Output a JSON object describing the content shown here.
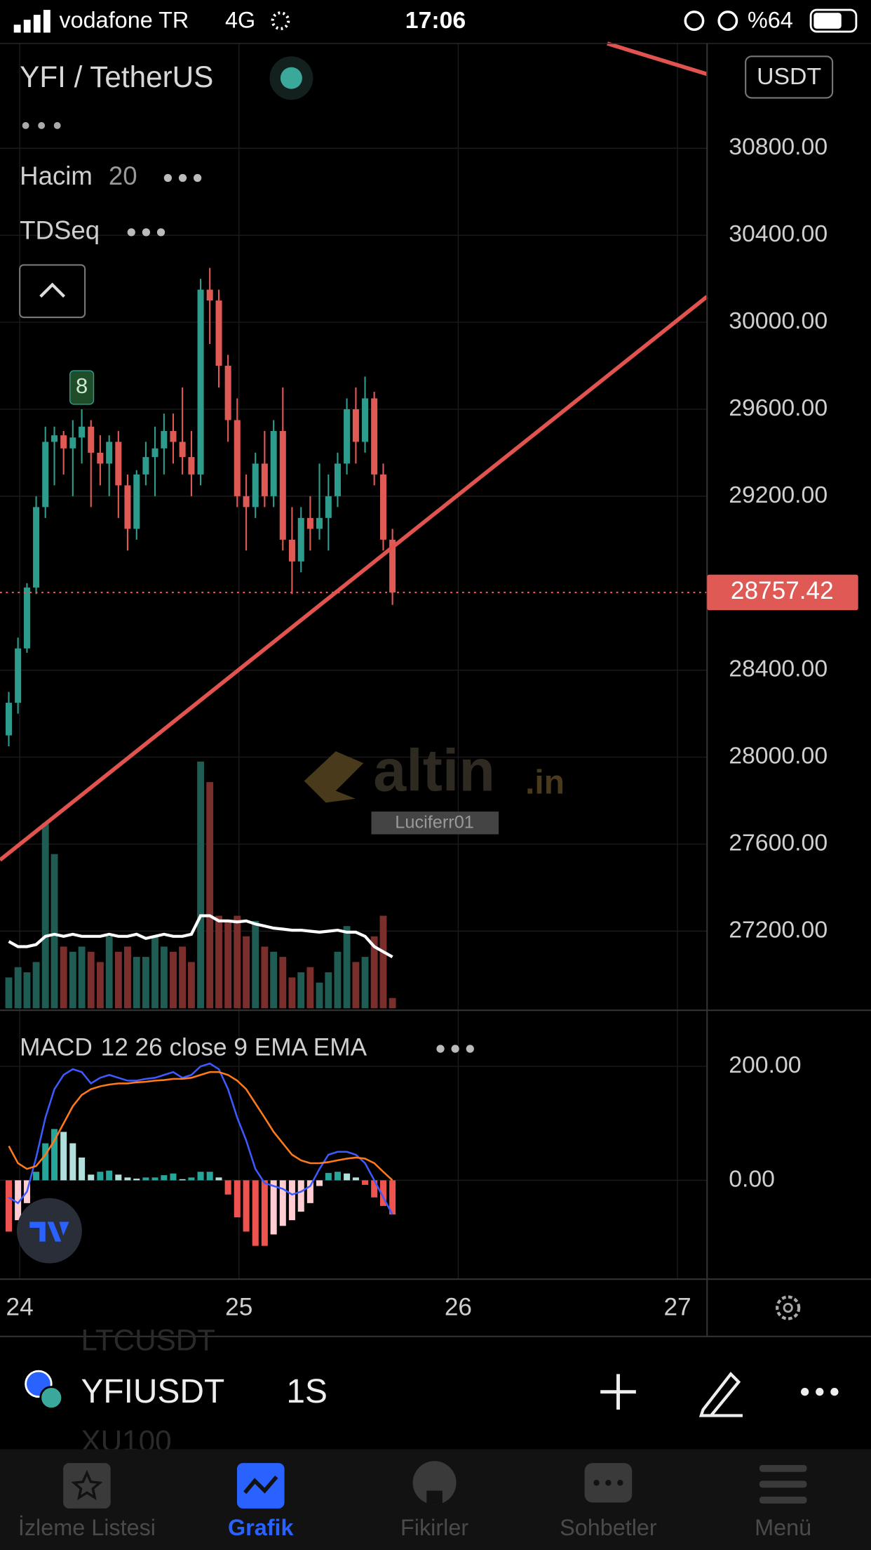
{
  "status_bar": {
    "carrier": "vodafone TR",
    "network": "4G",
    "time": "17:06",
    "battery": "%64"
  },
  "header": {
    "title": "YFI / TetherUS",
    "quote_currency": "USDT"
  },
  "chart_data": [
    {
      "type": "candlestick",
      "indicator": "TDSeq",
      "x": [
        23.95,
        23.992,
        24.033,
        24.075,
        24.117,
        24.158,
        24.2,
        24.242,
        24.283,
        24.325,
        24.367,
        24.408,
        24.45,
        24.492,
        24.533,
        24.575,
        24.617,
        24.658,
        24.7,
        24.742,
        24.783,
        24.825,
        24.867,
        24.908,
        24.95,
        24.992,
        25.033,
        25.075,
        25.117,
        25.158,
        25.2,
        25.242,
        25.283,
        25.325,
        25.367,
        25.408,
        25.45,
        25.492,
        25.533,
        25.575,
        25.617,
        25.658,
        25.7
      ],
      "open": [
        28100,
        28250,
        28500,
        28780,
        29150,
        29450,
        29480,
        29420,
        29470,
        29520,
        29400,
        29350,
        29450,
        29250,
        29050,
        29300,
        29380,
        29420,
        29500,
        29450,
        29380,
        29300,
        30150,
        30100,
        29800,
        29550,
        29200,
        29150,
        29350,
        29200,
        29500,
        29000,
        28900,
        29100,
        29050,
        29100,
        29200,
        29350,
        29600,
        29450,
        29650,
        29300,
        29000
      ],
      "high": [
        28300,
        28550,
        28800,
        29200,
        29520,
        29520,
        29500,
        29550,
        29600,
        29550,
        29480,
        29480,
        29500,
        29300,
        29320,
        29450,
        29520,
        29580,
        29580,
        29700,
        29500,
        30200,
        30250,
        30150,
        29850,
        29650,
        29300,
        29400,
        29500,
        29550,
        29700,
        29150,
        29150,
        29200,
        29350,
        29300,
        29400,
        29650,
        29700,
        29750,
        29680,
        29350,
        29050
      ],
      "low": [
        28050,
        28200,
        28480,
        28750,
        29100,
        29250,
        29300,
        29200,
        29350,
        29150,
        29250,
        29200,
        29100,
        28950,
        29000,
        29250,
        29200,
        29300,
        29350,
        29300,
        29200,
        29250,
        29900,
        29700,
        29450,
        29150,
        28950,
        29100,
        29150,
        29150,
        28950,
        28750,
        28850,
        28950,
        29000,
        28950,
        29150,
        29300,
        29350,
        29400,
        29250,
        28950,
        28700
      ],
      "close": [
        28250,
        28500,
        28780,
        29150,
        29450,
        29480,
        29420,
        29470,
        29520,
        29400,
        29350,
        29450,
        29250,
        29050,
        29300,
        29380,
        29420,
        29500,
        29450,
        29380,
        29300,
        30150,
        30100,
        29800,
        29550,
        29200,
        29150,
        29350,
        29200,
        29500,
        29000,
        28900,
        29100,
        29050,
        29100,
        29200,
        29350,
        29600,
        29450,
        29650,
        29300,
        29000,
        28757.42
      ],
      "color_up": "#2e9c8c",
      "color_down": "#e05a55",
      "xlim": [
        23.91,
        27.135
      ],
      "xticks": [
        24,
        25,
        26,
        27
      ],
      "ylim": [
        26845,
        31282
      ],
      "yticks": [
        {
          "value": 30800,
          "label": "30800.00"
        },
        {
          "value": 30400,
          "label": "30400.00"
        },
        {
          "value": 30000,
          "label": "30000.00"
        },
        {
          "value": 29600,
          "label": "29600.00"
        },
        {
          "value": 29200,
          "label": "29200.00"
        },
        {
          "value": 28400,
          "label": "28400.00"
        },
        {
          "value": 28000,
          "label": "28000.00"
        },
        {
          "value": 27600,
          "label": "27600.00"
        },
        {
          "value": 27200,
          "label": "27200.00"
        }
      ],
      "last_price": 28757.42,
      "annotations": [
        {
          "x": 24.283,
          "text": "8"
        }
      ],
      "grid": true
    },
    {
      "type": "bar",
      "title": "Hacim",
      "subtitle": "20",
      "values": [
        30,
        40,
        35,
        45,
        180,
        150,
        60,
        55,
        60,
        55,
        45,
        70,
        55,
        60,
        50,
        50,
        70,
        60,
        55,
        60,
        45,
        240,
        220,
        90,
        85,
        90,
        70,
        85,
        60,
        55,
        50,
        30,
        35,
        40,
        25,
        35,
        55,
        80,
        45,
        50,
        70,
        90,
        10
      ],
      "ma_values": [
        65,
        60,
        60,
        62,
        70,
        72,
        70,
        72,
        70,
        70,
        70,
        72,
        70,
        70,
        72,
        68,
        70,
        72,
        70,
        70,
        72,
        90,
        90,
        85,
        85,
        84,
        85,
        82,
        80,
        78,
        77,
        76,
        76,
        75,
        74,
        75,
        76,
        74,
        74,
        70,
        60,
        55,
        50
      ],
      "ma_color": "#ffffff",
      "ylim": [
        0,
        250
      ]
    },
    {
      "type": "macd",
      "title": "MACD",
      "subtitle": "12 26 close 9 EMA EMA",
      "series": [
        {
          "color": "#3d5afe",
          "values": [
            -30,
            -40,
            -20,
            40,
            110,
            160,
            185,
            195,
            190,
            170,
            180,
            185,
            180,
            175,
            175,
            178,
            180,
            185,
            190,
            180,
            185,
            200,
            205,
            195,
            160,
            110,
            70,
            20,
            -5,
            -10,
            -15,
            -25,
            -20,
            -10,
            20,
            45,
            50,
            50,
            45,
            30,
            0,
            -30,
            -60
          ]
        },
        {
          "color": "#ff7a1a",
          "values": [
            60,
            30,
            20,
            25,
            45,
            70,
            100,
            130,
            150,
            160,
            165,
            168,
            170,
            170,
            172,
            173,
            175,
            176,
            178,
            178,
            180,
            185,
            190,
            190,
            185,
            175,
            160,
            135,
            110,
            85,
            65,
            45,
            35,
            30,
            30,
            32,
            35,
            38,
            40,
            38,
            30,
            15,
            0
          ]
        }
      ],
      "histogram": [
        -90,
        -70,
        -40,
        15,
        65,
        90,
        85,
        65,
        40,
        10,
        15,
        17,
        10,
        5,
        3,
        5,
        5,
        9,
        12,
        2,
        5,
        15,
        15,
        5,
        -25,
        -65,
        -90,
        -115,
        -115,
        -95,
        -80,
        -70,
        -55,
        -40,
        -10,
        13,
        15,
        12,
        5,
        -8,
        -30,
        -45,
        -60
      ],
      "ylim": [
        -170,
        295
      ],
      "yticks": [
        {
          "value": 200,
          "label": "200.00"
        },
        {
          "value": 0,
          "label": "0.00"
        }
      ]
    }
  ],
  "toolbar": {
    "symbol": "YFIUSDT",
    "interval": "1S",
    "watchlist_above": "LTCUSDT",
    "watchlist_below": "XU100"
  },
  "watermark": {
    "brand": "altin",
    "brand_suffix": ".in",
    "user": "Luciferr01"
  },
  "tabs": [
    "İzleme Listesi",
    "Grafik",
    "Fikirler",
    "Sohbetler",
    "Menü"
  ]
}
